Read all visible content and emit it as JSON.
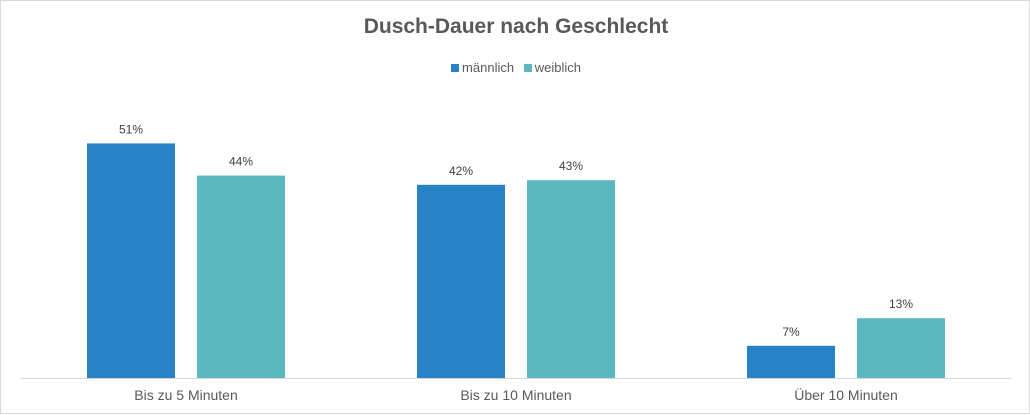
{
  "chart_data": {
    "type": "bar",
    "title": "Dusch-Dauer nach Geschlecht",
    "categories": [
      "Bis zu 5 Minuten",
      "Bis zu 10 Minuten",
      "Über 10 Minuten"
    ],
    "series": [
      {
        "name": "männlich",
        "values": [
          51,
          42,
          7
        ],
        "labels": [
          "51%",
          "42%",
          "7%"
        ],
        "color": "#2a82c6"
      },
      {
        "name": "weiblich",
        "values": [
          44,
          43,
          13
        ],
        "labels": [
          "44%",
          "43%",
          "13%"
        ],
        "color": "#5bb8bf"
      }
    ],
    "unit": "%",
    "ylim": [
      0,
      60
    ],
    "grid": false,
    "legend_position": "top"
  }
}
